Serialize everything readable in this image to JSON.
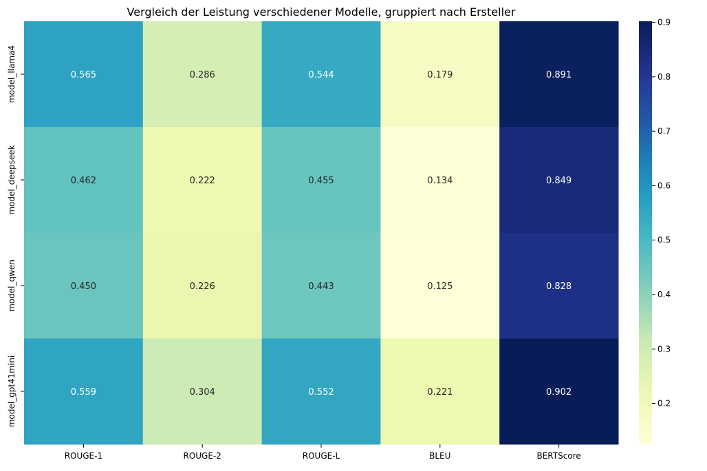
{
  "chart_data": {
    "type": "heatmap",
    "title": "Vergleich der Leistung verschiedener Modelle, gruppiert nach Ersteller",
    "xlabel": "",
    "ylabel": "",
    "columns": [
      "ROUGE-1",
      "ROUGE-2",
      "ROUGE-L",
      "BLEU",
      "BERTScore"
    ],
    "rows": [
      "model_llama4",
      "model_deepseek",
      "model_qwen",
      "model_gpt41mini"
    ],
    "values": [
      [
        0.565,
        0.286,
        0.544,
        0.179,
        0.891
      ],
      [
        0.462,
        0.222,
        0.455,
        0.134,
        0.849
      ],
      [
        0.45,
        0.226,
        0.443,
        0.125,
        0.828
      ],
      [
        0.559,
        0.304,
        0.552,
        0.221,
        0.902
      ]
    ],
    "value_labels": [
      [
        "0.565",
        "0.286",
        "0.544",
        "0.179",
        "0.891"
      ],
      [
        "0.462",
        "0.222",
        "0.455",
        "0.134",
        "0.849"
      ],
      [
        "0.450",
        "0.226",
        "0.443",
        "0.125",
        "0.828"
      ],
      [
        "0.559",
        "0.304",
        "0.552",
        "0.221",
        "0.902"
      ]
    ],
    "colormap": "YlGnBu",
    "color_range": [
      0.125,
      0.902
    ],
    "colorbar_ticks": [
      0.2,
      0.3,
      0.4,
      0.5,
      0.6,
      0.7,
      0.8,
      0.9
    ],
    "colorbar_tick_labels": [
      "0.2",
      "0.3",
      "0.4",
      "0.5",
      "0.6",
      "0.7",
      "0.8",
      "0.9"
    ],
    "grid": false,
    "colorbar_position": "right"
  }
}
